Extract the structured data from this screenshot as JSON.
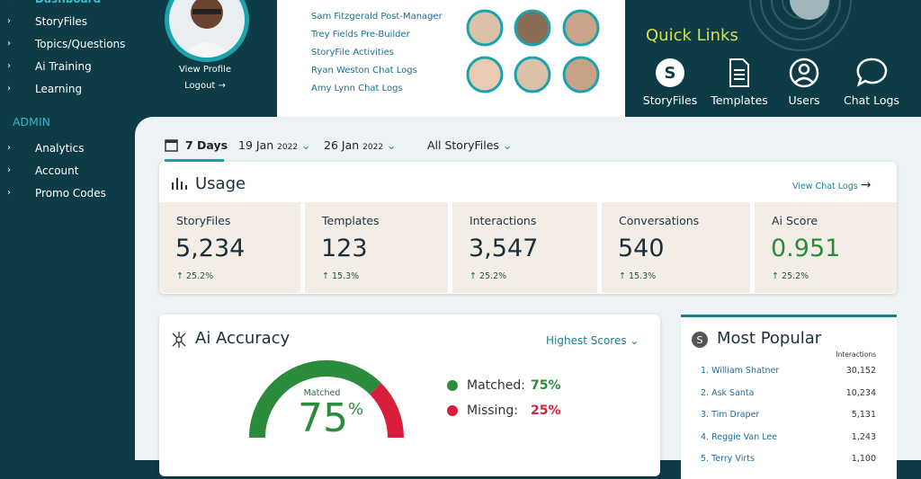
{
  "sidebar": {
    "items": [
      "Dashboard",
      "StoryFiles",
      "Topics/Questions",
      "Ai Training",
      "Learning"
    ],
    "admin_heading": "ADMIN",
    "admin_items": [
      "Analytics",
      "Account",
      "Promo Codes"
    ]
  },
  "profile": {
    "view_profile": "View Profile",
    "logout": "Logout"
  },
  "recent_links": [
    "Sam Fitzgerald Post-Manager",
    "Trey Fields Pre-Builder",
    "StoryFile Activities",
    "Ryan Weston Chat Logs",
    "Amy Lynn Chat Logs"
  ],
  "quick_links": {
    "title": "Quick Links",
    "items": [
      "StoryFiles",
      "Templates",
      "Users",
      "Chat Logs"
    ]
  },
  "filters": {
    "range": "7 Days",
    "start": {
      "day": "19 Jan",
      "year": "2022"
    },
    "end": {
      "day": "26 Jan",
      "year": "2022"
    },
    "scope": "All StoryFiles"
  },
  "usage": {
    "title": "Usage",
    "link": "View Chat Logs",
    "stats": [
      {
        "label": "StoryFiles",
        "value": "5,234",
        "change": "25.2%"
      },
      {
        "label": "Templates",
        "value": "123",
        "change": "15.3%"
      },
      {
        "label": "Interactions",
        "value": "3,547",
        "change": "25.2%"
      },
      {
        "label": "Conversations",
        "value": "540",
        "change": "15.3%"
      },
      {
        "label": "Ai Score",
        "value": "0.951",
        "change": "25.2%"
      }
    ]
  },
  "accuracy": {
    "title": "Ai Accuracy",
    "sort": "Highest Scores",
    "gauge": {
      "label": "Matched",
      "value": 75,
      "unit": "%"
    },
    "segments": [
      {
        "name": "Matched:",
        "value": 75,
        "value_label": "75%",
        "color": "#2a8c3a"
      },
      {
        "name": "Missing:",
        "value": 25,
        "value_label": "25%",
        "color": "#d81e3a"
      }
    ]
  },
  "most_popular": {
    "title": "Most Popular",
    "column": "Interactions",
    "rows": [
      [
        "1. William Shatner",
        "30,152"
      ],
      [
        "2. Ask Santa",
        "10,234"
      ],
      [
        "3. Tim Draper",
        "5,131"
      ],
      [
        "4. Reggie Van Lee",
        "1,243"
      ],
      [
        "5. Terry Virts",
        "1,100"
      ]
    ]
  }
}
